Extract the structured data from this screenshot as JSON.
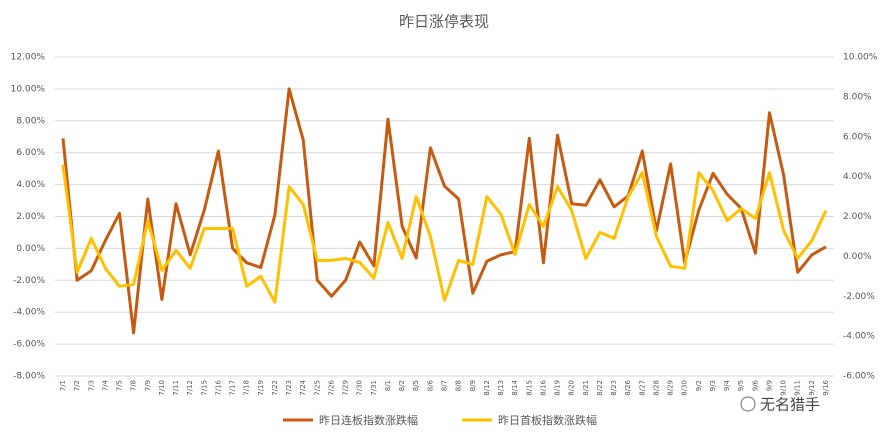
{
  "chart_data": {
    "type": "line",
    "title": "昨日涨停表现",
    "categories": [
      "7/1",
      "7/2",
      "7/3",
      "7/4",
      "7/5",
      "7/8",
      "7/9",
      "7/10",
      "7/11",
      "7/12",
      "7/15",
      "7/16",
      "7/17",
      "7/18",
      "7/19",
      "7/22",
      "7/23",
      "7/24",
      "7/25",
      "7/26",
      "7/29",
      "7/30",
      "7/31",
      "8/1",
      "8/2",
      "8/5",
      "8/6",
      "8/7",
      "8/8",
      "8/9",
      "8/12",
      "8/13",
      "8/14",
      "8/15",
      "8/16",
      "8/19",
      "8/20",
      "8/21",
      "8/22",
      "8/23",
      "8/26",
      "8/27",
      "8/28",
      "8/29",
      "8/30",
      "9/2",
      "9/3",
      "9/4",
      "9/5",
      "9/6",
      "9/9",
      "9/10",
      "9/11",
      "9/12",
      "9/16"
    ],
    "series": [
      {
        "name": "昨日连板指数涨跌幅",
        "color": "#c55a11",
        "axis": "y",
        "values": [
          6.9,
          -2.0,
          -1.4,
          0.5,
          2.2,
          -5.3,
          3.1,
          -3.2,
          2.8,
          -0.4,
          2.4,
          6.1,
          0,
          -0.9,
          -1.2,
          2.1,
          10.0,
          6.8,
          -2.0,
          -3.0,
          -2.0,
          0.4,
          -1.1,
          8.1,
          1.4,
          -0.6,
          6.3,
          3.9,
          3.1,
          -2.8,
          -0.8,
          -0.4,
          -0.2,
          6.9,
          -0.9,
          7.1,
          2.8,
          2.7,
          4.3,
          2.6,
          3.3,
          6.1,
          1.1,
          5.3,
          -0.9,
          2.4,
          4.7,
          3.4,
          2.5,
          -0.3,
          8.5,
          4.6,
          -1.5,
          -0.4,
          0.1
        ]
      },
      {
        "name": "昨日首板指数涨跌幅",
        "color": "#ffc000",
        "axis": "y2",
        "values": [
          4.6,
          -0.8,
          0.9,
          -0.6,
          -1.5,
          -1.4,
          1.8,
          -0.7,
          0.3,
          -0.6,
          1.4,
          1.4,
          1.4,
          -1.5,
          -1.0,
          -2.3,
          3.5,
          2.6,
          -0.2,
          -0.2,
          -0.1,
          -0.3,
          -1.1,
          1.7,
          -0.1,
          3.0,
          1.0,
          -2.2,
          -0.2,
          -0.4,
          3.0,
          2.1,
          0.1,
          2.6,
          1.5,
          3.5,
          2.3,
          -0.1,
          1.2,
          0.9,
          3.0,
          4.2,
          1.0,
          -0.5,
          -0.6,
          4.2,
          3.3,
          1.8,
          2.4,
          1.9,
          4.2,
          1.3,
          -0.1,
          0.8,
          2.3
        ]
      }
    ],
    "ylim": [
      -8,
      12
    ],
    "yticks": [
      {
        "value": -8,
        "label": "-8.00%"
      },
      {
        "value": -6,
        "label": "-6.00%"
      },
      {
        "value": -4,
        "label": "-4.00%"
      },
      {
        "value": -2,
        "label": "-2.00%"
      },
      {
        "value": 0,
        "label": "0.00%"
      },
      {
        "value": 2,
        "label": "2.00%"
      },
      {
        "value": 4,
        "label": "4.00%"
      },
      {
        "value": 6,
        "label": "6.00%"
      },
      {
        "value": 8,
        "label": "8.00%"
      },
      {
        "value": 10,
        "label": "10.00%"
      },
      {
        "value": 12,
        "label": "12.00%"
      }
    ],
    "y2lim": [
      -6,
      10
    ],
    "y2ticks": [
      {
        "value": -6,
        "label": "-6.00%"
      },
      {
        "value": -4,
        "label": "-4.00%"
      },
      {
        "value": -2,
        "label": "-2.00%"
      },
      {
        "value": 0,
        "label": "0.00%"
      },
      {
        "value": 2,
        "label": "2.00%"
      },
      {
        "value": 4,
        "label": "4.00%"
      },
      {
        "value": 6,
        "label": "6.00%"
      },
      {
        "value": 8,
        "label": "8.00%"
      },
      {
        "value": 10,
        "label": "10.00%"
      }
    ],
    "grid": true,
    "legend": "bottom",
    "watermark": "无名猎手"
  }
}
